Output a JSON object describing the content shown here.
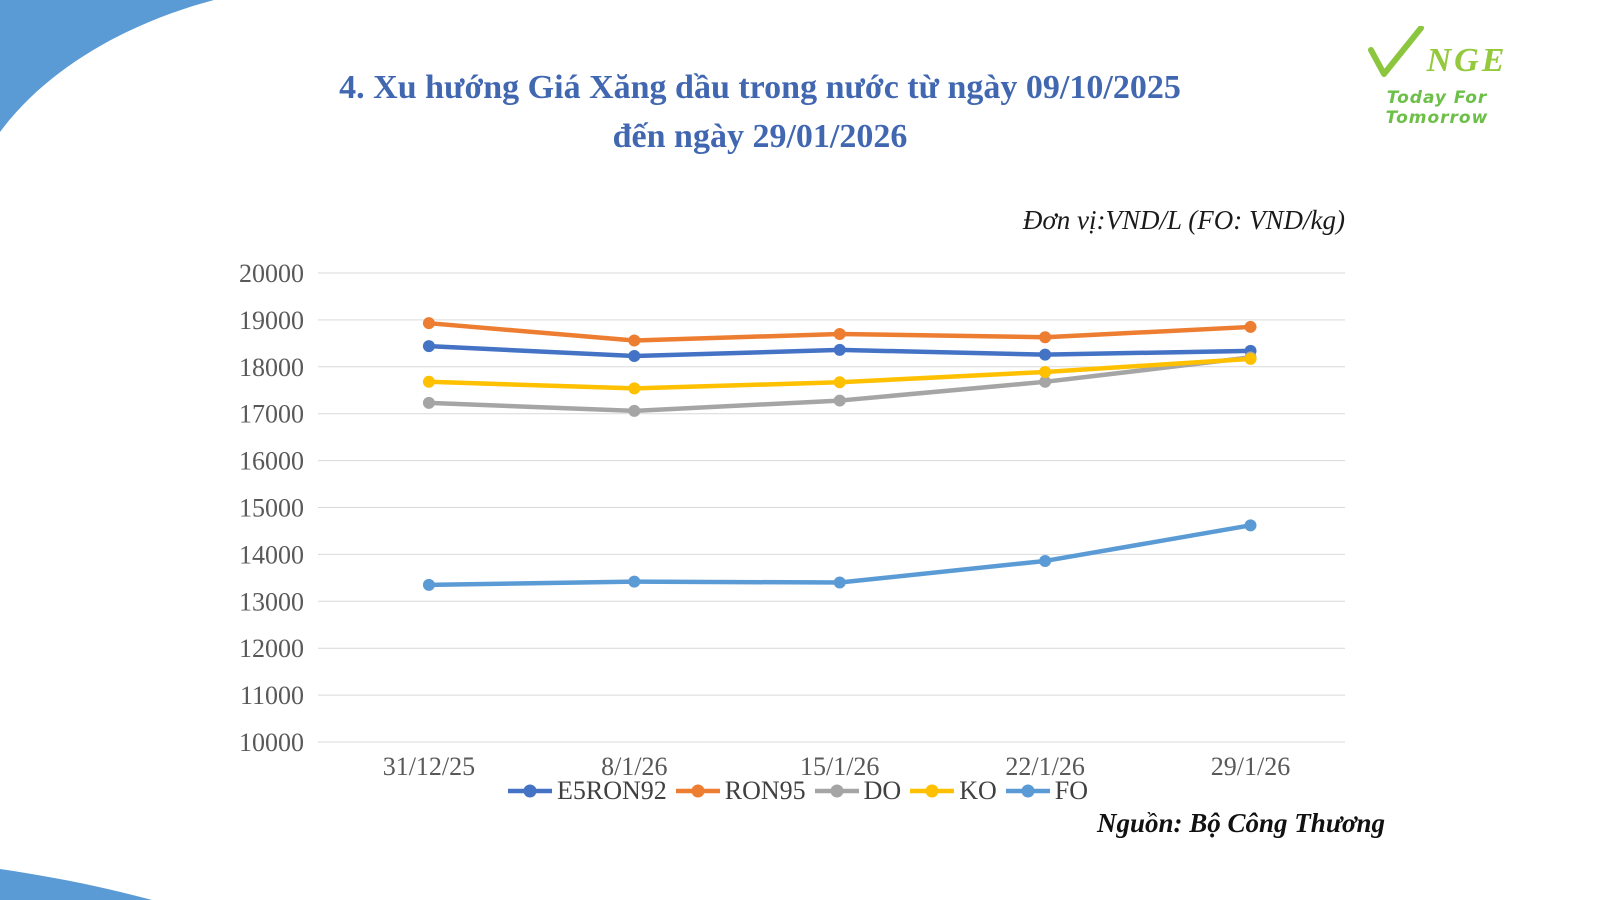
{
  "title": {
    "line1": "4. Xu hướng Giá Xăng dầu trong nước từ ngày 09/10/2025",
    "line2": "đến ngày 29/01/2026"
  },
  "logo": {
    "name": "NGE",
    "tagline": "Today For Tomorrow",
    "check_color": "#8CC63E",
    "name_color": "#95C93D",
    "tagline_color": "#6CBF47"
  },
  "unit_label": "Đơn vị:VND/L (FO: VND/kg)",
  "source": "Nguồn: Bộ Công Thương",
  "decor": {
    "swoosh_color": "#5B9BD5"
  },
  "chart_data": {
    "type": "line",
    "title": "",
    "xlabel": "",
    "ylabel": "",
    "categories": [
      "31/12/25",
      "8/1/26",
      "15/1/26",
      "22/1/26",
      "29/1/26"
    ],
    "series": [
      {
        "name": "E5RON92",
        "color": "#4472C4",
        "values": [
          18440,
          18230,
          18360,
          18260,
          18340
        ]
      },
      {
        "name": "RON95",
        "color": "#ED7D31",
        "values": [
          18930,
          18560,
          18700,
          18630,
          18850
        ]
      },
      {
        "name": "DO",
        "color": "#A5A5A5",
        "values": [
          17230,
          17060,
          17280,
          17680,
          18200
        ]
      },
      {
        "name": "KO",
        "color": "#FFC000",
        "values": [
          17680,
          17540,
          17670,
          17890,
          18170
        ]
      },
      {
        "name": "FO",
        "color": "#5B9BD5",
        "values": [
          13350,
          13420,
          13400,
          13860,
          14620
        ]
      }
    ],
    "ylim": [
      10000,
      20000
    ],
    "ytick_step": 1000,
    "grid": "horizontal",
    "gridline_color": "#D9D9D9",
    "axis_label_color": "#595959",
    "legend_position": "bottom",
    "marker": "circle"
  }
}
